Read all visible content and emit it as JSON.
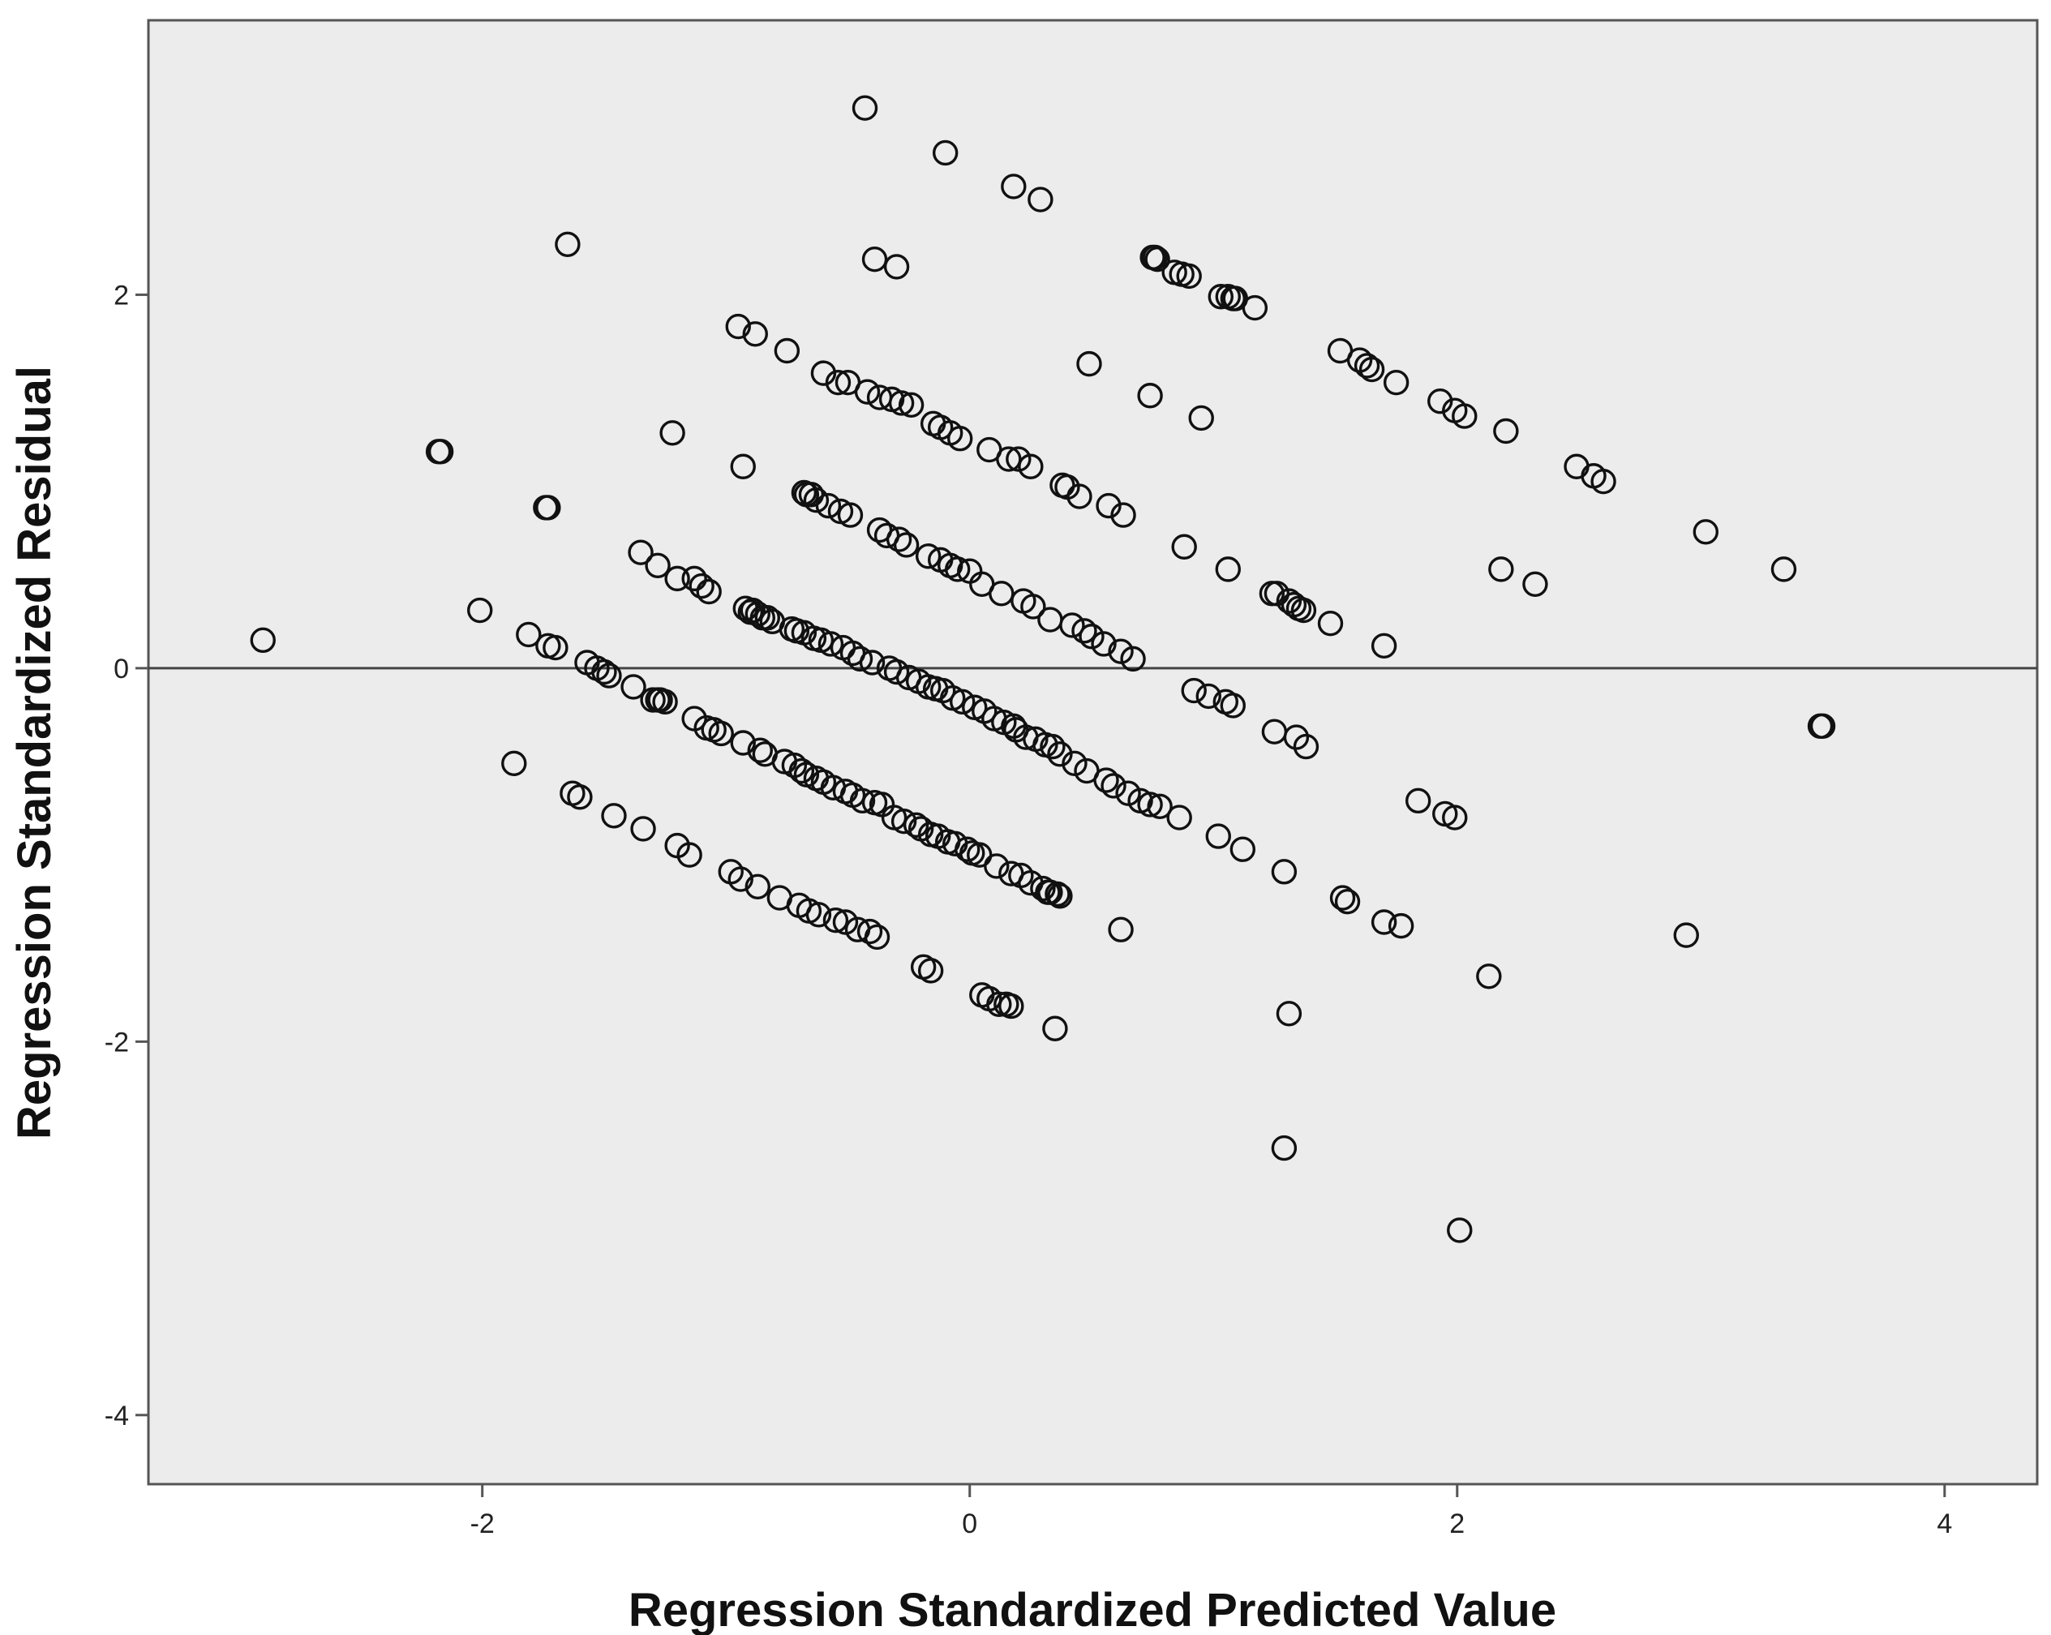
{
  "chart_data": {
    "type": "scatter",
    "title": "",
    "xlabel": "Regression Standardized Predicted Value",
    "ylabel": "Regression Standardized Residual",
    "xlim": [
      -3.37,
      4.38
    ],
    "ylim": [
      -4.37,
      3.47
    ],
    "xticks": [
      -2,
      0,
      2,
      4
    ],
    "yticks": [
      -4,
      -2,
      0,
      2
    ],
    "reference_line": {
      "axis": "y",
      "value": 0
    },
    "grid": false,
    "legend": "none",
    "colors": {
      "background": "#ececec",
      "marker": "#111111",
      "frame": "#555555"
    },
    "points": [
      [
        -2.9,
        0.15
      ],
      [
        -2.18,
        1.16
      ],
      [
        -2.17,
        1.16
      ],
      [
        -2.01,
        0.31
      ],
      [
        -1.87,
        -0.51
      ],
      [
        -1.81,
        0.18
      ],
      [
        -1.74,
        0.86
      ],
      [
        -1.73,
        0.86
      ],
      [
        -1.73,
        0.12
      ],
      [
        -1.7,
        0.11
      ],
      [
        -1.65,
        2.27
      ],
      [
        -1.63,
        -0.67
      ],
      [
        -1.6,
        -0.69
      ],
      [
        -1.57,
        0.03
      ],
      [
        -1.53,
        0.0
      ],
      [
        -1.5,
        -0.02
      ],
      [
        -1.48,
        -0.04
      ],
      [
        -1.46,
        -0.79
      ],
      [
        -1.38,
        -0.1
      ],
      [
        -1.35,
        0.62
      ],
      [
        -1.34,
        -0.86
      ],
      [
        -1.3,
        -0.17
      ],
      [
        -1.28,
        0.55
      ],
      [
        -1.28,
        -0.17
      ],
      [
        -1.27,
        -0.17
      ],
      [
        -1.25,
        -0.18
      ],
      [
        -1.22,
        1.26
      ],
      [
        -1.2,
        -0.95
      ],
      [
        -1.2,
        0.48
      ],
      [
        -1.15,
        -1.0
      ],
      [
        -1.13,
        0.48
      ],
      [
        -1.13,
        -0.27
      ],
      [
        -1.1,
        0.44
      ],
      [
        -1.08,
        -0.32
      ],
      [
        -1.07,
        0.41
      ],
      [
        -1.05,
        -0.33
      ],
      [
        -1.02,
        -0.35
      ],
      [
        -0.98,
        -1.09
      ],
      [
        -0.95,
        1.83
      ],
      [
        -0.94,
        -1.13
      ],
      [
        -0.93,
        1.08
      ],
      [
        -0.93,
        -0.4
      ],
      [
        -0.92,
        0.32
      ],
      [
        -0.9,
        0.3
      ],
      [
        -0.88,
        1.79
      ],
      [
        -0.89,
        0.31
      ],
      [
        -0.87,
        0.29
      ],
      [
        -0.87,
        -1.17
      ],
      [
        -0.86,
        -0.44
      ],
      [
        -0.85,
        0.27
      ],
      [
        -0.84,
        -0.46
      ],
      [
        -0.83,
        0.27
      ],
      [
        -0.81,
        0.25
      ],
      [
        -0.78,
        -1.23
      ],
      [
        -0.75,
        1.7
      ],
      [
        -0.76,
        -0.5
      ],
      [
        -0.73,
        0.21
      ],
      [
        -0.72,
        -0.52
      ],
      [
        -0.71,
        0.2
      ],
      [
        -0.7,
        -1.27
      ],
      [
        -0.69,
        -0.55
      ],
      [
        -0.68,
        0.94
      ],
      [
        -0.68,
        0.19
      ],
      [
        -0.67,
        0.93
      ],
      [
        -0.67,
        -0.57
      ],
      [
        -0.66,
        -1.3
      ],
      [
        -0.65,
        0.93
      ],
      [
        -0.64,
        0.16
      ],
      [
        -0.63,
        0.9
      ],
      [
        -0.63,
        -0.59
      ],
      [
        -0.62,
        -1.32
      ],
      [
        -0.61,
        0.15
      ],
      [
        -0.6,
        -0.61
      ],
      [
        -0.6,
        1.58
      ],
      [
        -0.58,
        0.87
      ],
      [
        -0.57,
        0.13
      ],
      [
        -0.56,
        -0.64
      ],
      [
        -0.55,
        -1.35
      ],
      [
        -0.54,
        1.53
      ],
      [
        -0.53,
        0.84
      ],
      [
        -0.52,
        0.11
      ],
      [
        -0.51,
        -0.66
      ],
      [
        -0.51,
        -1.36
      ],
      [
        -0.5,
        1.53
      ],
      [
        -0.49,
        0.82
      ],
      [
        -0.48,
        0.08
      ],
      [
        -0.48,
        -0.68
      ],
      [
        -0.46,
        -1.4
      ],
      [
        -0.45,
        0.05
      ],
      [
        -0.44,
        -0.71
      ],
      [
        -0.43,
        3.0
      ],
      [
        -0.42,
        1.48
      ],
      [
        -0.41,
        -1.41
      ],
      [
        -0.4,
        0.03
      ],
      [
        -0.39,
        2.19
      ],
      [
        -0.39,
        -0.72
      ],
      [
        -0.38,
        -1.44
      ],
      [
        -0.37,
        0.74
      ],
      [
        -0.37,
        1.45
      ],
      [
        -0.36,
        -0.73
      ],
      [
        -0.34,
        0.71
      ],
      [
        -0.33,
        0.0
      ],
      [
        -0.32,
        1.44
      ],
      [
        -0.31,
        -0.8
      ],
      [
        -0.3,
        2.15
      ],
      [
        -0.3,
        -0.02
      ],
      [
        -0.29,
        0.69
      ],
      [
        -0.28,
        1.42
      ],
      [
        -0.27,
        -0.82
      ],
      [
        -0.26,
        0.66
      ],
      [
        -0.25,
        -0.05
      ],
      [
        -0.24,
        1.41
      ],
      [
        -0.22,
        -0.84
      ],
      [
        -0.21,
        -0.07
      ],
      [
        -0.2,
        -0.86
      ],
      [
        -0.19,
        -1.6
      ],
      [
        -0.17,
        0.6
      ],
      [
        -0.17,
        -0.1
      ],
      [
        -0.16,
        -0.89
      ],
      [
        -0.16,
        -1.62
      ],
      [
        -0.15,
        1.31
      ],
      [
        -0.14,
        -0.11
      ],
      [
        -0.13,
        -0.9
      ],
      [
        -0.12,
        1.29
      ],
      [
        -0.12,
        0.58
      ],
      [
        -0.11,
        -0.12
      ],
      [
        -0.1,
        2.76
      ],
      [
        -0.09,
        -0.93
      ],
      [
        -0.08,
        1.26
      ],
      [
        -0.08,
        0.55
      ],
      [
        -0.07,
        -0.16
      ],
      [
        -0.06,
        -0.94
      ],
      [
        -0.05,
        0.53
      ],
      [
        -0.04,
        1.23
      ],
      [
        -0.03,
        -0.18
      ],
      [
        -0.01,
        -0.97
      ],
      [
        0.0,
        0.52
      ],
      [
        0.01,
        -0.99
      ],
      [
        0.02,
        -0.21
      ],
      [
        0.04,
        -1.0
      ],
      [
        0.05,
        0.45
      ],
      [
        0.05,
        -1.75
      ],
      [
        0.06,
        -0.23
      ],
      [
        0.08,
        1.17
      ],
      [
        0.08,
        -1.77
      ],
      [
        0.1,
        -0.27
      ],
      [
        0.11,
        -1.06
      ],
      [
        0.12,
        -1.8
      ],
      [
        0.13,
        0.4
      ],
      [
        0.14,
        -0.29
      ],
      [
        0.15,
        -1.8
      ],
      [
        0.16,
        1.12
      ],
      [
        0.17,
        -1.1
      ],
      [
        0.18,
        -0.31
      ],
      [
        0.17,
        -1.81
      ],
      [
        0.18,
        2.58
      ],
      [
        0.19,
        -0.33
      ],
      [
        0.2,
        1.12
      ],
      [
        0.21,
        -1.11
      ],
      [
        0.22,
        0.36
      ],
      [
        0.23,
        -0.37
      ],
      [
        0.25,
        1.08
      ],
      [
        0.25,
        -1.15
      ],
      [
        0.26,
        0.33
      ],
      [
        0.27,
        -0.38
      ],
      [
        0.29,
        2.51
      ],
      [
        0.3,
        -1.18
      ],
      [
        0.31,
        -0.41
      ],
      [
        0.32,
        -1.2
      ],
      [
        0.33,
        0.26
      ],
      [
        0.33,
        -1.2
      ],
      [
        0.34,
        -0.42
      ],
      [
        0.35,
        -1.93
      ],
      [
        0.36,
        -1.21
      ],
      [
        0.37,
        -1.22
      ],
      [
        0.37,
        -0.46
      ],
      [
        0.38,
        0.98
      ],
      [
        0.4,
        0.97
      ],
      [
        0.42,
        0.23
      ],
      [
        0.43,
        -0.51
      ],
      [
        0.45,
        0.92
      ],
      [
        0.47,
        0.2
      ],
      [
        0.48,
        -0.55
      ],
      [
        0.49,
        1.63
      ],
      [
        0.5,
        0.17
      ],
      [
        0.55,
        0.13
      ],
      [
        0.56,
        -0.6
      ],
      [
        0.57,
        0.87
      ],
      [
        0.59,
        -0.63
      ],
      [
        0.62,
        0.09
      ],
      [
        0.62,
        -1.4
      ],
      [
        0.63,
        0.82
      ],
      [
        0.65,
        -0.67
      ],
      [
        0.67,
        0.05
      ],
      [
        0.7,
        -0.71
      ],
      [
        0.74,
        1.46
      ],
      [
        0.74,
        -0.73
      ],
      [
        0.75,
        2.2
      ],
      [
        0.76,
        2.2
      ],
      [
        0.78,
        -0.74
      ],
      [
        0.77,
        2.19
      ],
      [
        0.84,
        2.12
      ],
      [
        0.86,
        -0.8
      ],
      [
        0.87,
        2.11
      ],
      [
        0.88,
        0.65
      ],
      [
        0.9,
        2.1
      ],
      [
        0.92,
        -0.12
      ],
      [
        0.95,
        1.34
      ],
      [
        0.98,
        -0.15
      ],
      [
        1.03,
        1.99
      ],
      [
        1.02,
        -0.9
      ],
      [
        1.05,
        -0.18
      ],
      [
        1.06,
        1.99
      ],
      [
        1.06,
        0.53
      ],
      [
        1.08,
        1.98
      ],
      [
        1.09,
        1.98
      ],
      [
        1.08,
        -0.2
      ],
      [
        1.12,
        -0.97
      ],
      [
        1.17,
        1.93
      ],
      [
        1.24,
        0.4
      ],
      [
        1.26,
        0.4
      ],
      [
        1.25,
        -0.34
      ],
      [
        1.29,
        -1.09
      ],
      [
        1.29,
        -2.57
      ],
      [
        1.31,
        0.36
      ],
      [
        1.31,
        -1.85
      ],
      [
        1.33,
        0.34
      ],
      [
        1.34,
        -0.37
      ],
      [
        1.35,
        0.32
      ],
      [
        1.37,
        0.31
      ],
      [
        1.38,
        -0.42
      ],
      [
        1.48,
        0.24
      ],
      [
        1.52,
        1.7
      ],
      [
        1.53,
        -1.23
      ],
      [
        1.55,
        -1.25
      ],
      [
        1.6,
        1.65
      ],
      [
        1.63,
        1.62
      ],
      [
        1.65,
        1.6
      ],
      [
        1.7,
        0.12
      ],
      [
        1.7,
        -1.36
      ],
      [
        1.75,
        1.53
      ],
      [
        1.77,
        -1.38
      ],
      [
        1.84,
        -0.71
      ],
      [
        1.93,
        1.43
      ],
      [
        1.95,
        -0.78
      ],
      [
        1.99,
        1.38
      ],
      [
        1.99,
        -0.8
      ],
      [
        2.01,
        -3.01
      ],
      [
        2.03,
        1.35
      ],
      [
        2.13,
        -1.65
      ],
      [
        2.18,
        0.53
      ],
      [
        2.2,
        1.27
      ],
      [
        2.32,
        0.45
      ],
      [
        2.49,
        1.08
      ],
      [
        2.56,
        1.03
      ],
      [
        2.6,
        1.0
      ],
      [
        2.94,
        -1.43
      ],
      [
        3.02,
        0.73
      ],
      [
        3.34,
        0.53
      ],
      [
        3.49,
        -0.31
      ],
      [
        3.5,
        -0.31
      ]
    ]
  }
}
